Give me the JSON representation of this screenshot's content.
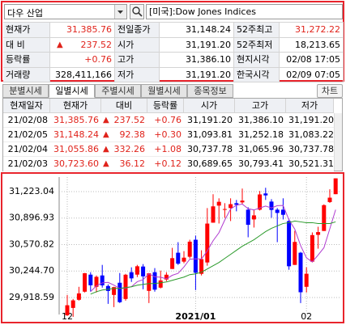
{
  "header": {
    "symbol": "다우 산업",
    "index_name": "[미국]:Dow Jones Indices"
  },
  "quote": {
    "rows": [
      [
        "현재가",
        {
          "text": "31,385.76",
          "color": "#e0231b"
        },
        "전일종가",
        "31,148.24",
        "52주최고",
        {
          "text": "31,272.22",
          "color": "#e0231b"
        }
      ],
      [
        "대 비",
        {
          "text": "237.52",
          "color": "#e0231b"
        },
        "시가",
        "31,191.20",
        "52주최저",
        "18,213.65"
      ],
      [
        "등락률",
        {
          "text": "+0.76",
          "color": "#e0231b"
        },
        "고가",
        "31,386.10",
        "현지시각",
        "02/08 17:05"
      ],
      [
        "거래량",
        "328,411,166",
        "저가",
        "31,191.20",
        "한국시각",
        "02/09 07:05"
      ]
    ]
  },
  "tabs": [
    "분별시세",
    "일별시세",
    "주별시세",
    "월별시세",
    "종목정보"
  ],
  "chart_button": "차트",
  "table": {
    "up_color": "#e0231b",
    "columns": [
      "현재일자",
      "현재가",
      "대비",
      "등락률",
      "시가",
      "고가",
      "저가"
    ],
    "rows": [
      [
        "21/02/08",
        "31,385.76",
        "237.52",
        "+0.76",
        "31,191.20",
        "31,386.10",
        "31,191.20"
      ],
      [
        "21/02/05",
        "31,148.24",
        "92.38",
        "+0.30",
        "31,093.81",
        "31,252.18",
        "31,083.22"
      ],
      [
        "21/02/04",
        "31,055.86",
        "332.26",
        "+1.08",
        "30,737.78",
        "31,065.96",
        "30,737.78"
      ],
      [
        "21/02/03",
        "30,723.60",
        "36.12",
        "+0.12",
        "30,689.65",
        "30,793.41",
        "30,521.31"
      ]
    ]
  },
  "chart_data": {
    "type": "candlestick",
    "up_color": "#ff0000",
    "down_color": "#0000ff",
    "grid": true,
    "ylim": [
      29749,
      31402
    ],
    "yticks": [
      {
        "value": 29918.59,
        "label": "29,918.59"
      },
      {
        "value": 30244.7,
        "label": "30,244.70"
      },
      {
        "value": 30570.82,
        "label": "30,570.82"
      },
      {
        "value": 30896.93,
        "label": "30,896.93"
      },
      {
        "value": 31223.04,
        "label": "31,223.04"
      }
    ],
    "categories": [
      "12",
      null,
      null,
      null,
      null,
      null,
      null,
      null,
      null,
      null,
      null,
      null,
      null,
      null,
      null,
      null,
      null,
      null,
      null,
      null,
      null,
      null,
      "2021/01",
      null,
      null,
      null,
      null,
      null,
      null,
      null,
      null,
      null,
      null,
      null,
      null,
      null,
      null,
      null,
      null,
      null,
      null,
      "02",
      null,
      null,
      null,
      null,
      null
    ],
    "ohlc": [
      [
        29700,
        29950,
        29690,
        29823
      ],
      [
        29790,
        29900,
        29680,
        29883
      ],
      [
        29890,
        30050,
        29880,
        29969
      ],
      [
        29990,
        30220,
        29980,
        30218
      ],
      [
        30200,
        30230,
        29990,
        30069
      ],
      [
        30050,
        30190,
        29980,
        30173
      ],
      [
        30190,
        30320,
        30040,
        30068
      ],
      [
        30060,
        30080,
        29840,
        29999
      ],
      [
        29950,
        30050,
        29800,
        30046
      ],
      [
        30100,
        30220,
        29850,
        29861
      ],
      [
        29900,
        30210,
        29880,
        30199
      ],
      [
        30230,
        30290,
        30110,
        30154
      ],
      [
        30200,
        30320,
        30170,
        30303
      ],
      [
        30300,
        30330,
        30020,
        30179
      ],
      [
        30000,
        30220,
        29850,
        30216
      ],
      [
        30230,
        30280,
        29990,
        30015
      ],
      [
        30040,
        30250,
        30030,
        30129
      ],
      [
        30140,
        30230,
        30120,
        30199
      ],
      [
        30270,
        30530,
        30270,
        30403
      ],
      [
        30470,
        30600,
        30320,
        30335
      ],
      [
        30360,
        30490,
        30340,
        30409
      ],
      [
        30420,
        30630,
        30400,
        30606
      ],
      [
        30630,
        30680,
        30010,
        30223
      ],
      [
        30210,
        30500,
        30190,
        30391
      ],
      [
        30350,
        31020,
        30310,
        30829
      ],
      [
        30840,
        31190,
        30840,
        31041
      ],
      [
        31050,
        31140,
        30830,
        31097
      ],
      [
        31000,
        31080,
        30900,
        31008
      ],
      [
        31020,
        31140,
        30860,
        31068
      ],
      [
        31080,
        31120,
        30980,
        31060
      ],
      [
        31090,
        31260,
        31070,
        31112
      ],
      [
        31000,
        31030,
        30660,
        30814
      ],
      [
        30880,
        31000,
        30780,
        30930
      ],
      [
        31000,
        31230,
        30990,
        31188
      ],
      [
        31200,
        31270,
        31120,
        31176
      ],
      [
        31100,
        31130,
        30900,
        30997
      ],
      [
        31000,
        31020,
        30600,
        30960
      ],
      [
        31000,
        31140,
        30880,
        30937
      ],
      [
        30860,
        30890,
        30260,
        30303
      ],
      [
        30320,
        30740,
        30320,
        30603
      ],
      [
        30470,
        30480,
        29850,
        29983
      ],
      [
        30050,
        30290,
        29980,
        30211
      ],
      [
        30360,
        30720,
        30350,
        30687
      ],
      [
        30690,
        30790,
        30520,
        30724
      ],
      [
        30738,
        31066,
        30738,
        31056
      ],
      [
        31094,
        31252,
        31083,
        31148
      ],
      [
        31191,
        31386,
        31191,
        31386
      ]
    ],
    "lines": [
      {
        "color": "#b03cd0",
        "values": [
          null,
          null,
          null,
          null,
          29992,
          30062,
          30099,
          30105,
          30071,
          30029,
          30035,
          30052,
          30113,
          30139,
          30210,
          30173,
          30168,
          30148,
          30192,
          30216,
          30295,
          30390,
          30395,
          30393,
          30492,
          30618,
          30716,
          30873,
          31009,
          31055,
          31069,
          31012,
          30997,
          31021,
          31044,
          31021,
          31050,
          31052,
          30875,
          30760,
          30557,
          30407,
          30357,
          30442,
          30532,
          30765,
          31000
        ]
      },
      {
        "color": "#2a9a2a",
        "values": [
          null,
          null,
          null,
          null,
          29960,
          29990,
          30010,
          30020,
          30030,
          30030,
          30040,
          30050,
          30070,
          30080,
          30090,
          30090,
          30100,
          30110,
          30130,
          30150,
          30170,
          30200,
          30210,
          30230,
          30270,
          30310,
          30350,
          30400,
          30450,
          30500,
          30550,
          30590,
          30630,
          30680,
          30730,
          30770,
          30800,
          30830,
          30840,
          30860,
          30850,
          30840,
          30840,
          30830,
          30830,
          30830,
          30850
        ]
      }
    ]
  }
}
